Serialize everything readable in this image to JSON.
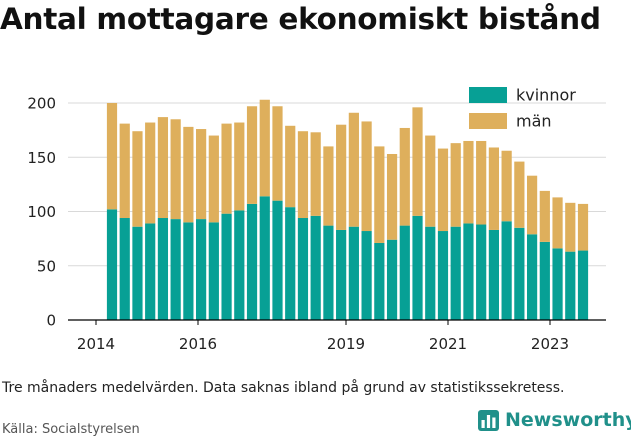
{
  "title": "Antal mottagare ekonomiskt bistånd",
  "footnote": "Tre månaders medelvärden. Data saknas ibland på grund av statistikssekretess.",
  "source": "Källa: Socialstyrelsen",
  "brand": {
    "name": "Newsworthy",
    "icon": "bar-chart-logo-icon"
  },
  "colors": {
    "kvinnor": "#07a095",
    "man": "#deaf5c",
    "grid": "#d9d9d9",
    "axis": "#000000",
    "brand": "#20908a"
  },
  "chart_data": {
    "type": "bar",
    "stacked": true,
    "ylim": [
      0,
      200
    ],
    "yticks": [
      0,
      50,
      100,
      150,
      200
    ],
    "xticks": [
      "2014",
      "2016",
      "2019",
      "2021",
      "2023"
    ],
    "xlabel": "",
    "ylabel": "",
    "grid": true,
    "legend_position": "top-right",
    "series": [
      {
        "name": "kvinnor",
        "color": "#07a095",
        "values": [
          102,
          94,
          86,
          89,
          94,
          93,
          90,
          93,
          90,
          98,
          101,
          107,
          114,
          110,
          104,
          94,
          96,
          87,
          83,
          86,
          82,
          71,
          74,
          87,
          96,
          86,
          82,
          86,
          89,
          88,
          83,
          91,
          85,
          79,
          72,
          66,
          63,
          64
        ]
      },
      {
        "name": "män",
        "color": "#deaf5c",
        "values": [
          98,
          87,
          88,
          93,
          93,
          92,
          88,
          83,
          80,
          83,
          81,
          90,
          89,
          87,
          75,
          80,
          77,
          73,
          97,
          105,
          101,
          89,
          79,
          90,
          100,
          84,
          76,
          77,
          76,
          77,
          76,
          65,
          61,
          54,
          47,
          47,
          45,
          43
        ]
      }
    ]
  }
}
